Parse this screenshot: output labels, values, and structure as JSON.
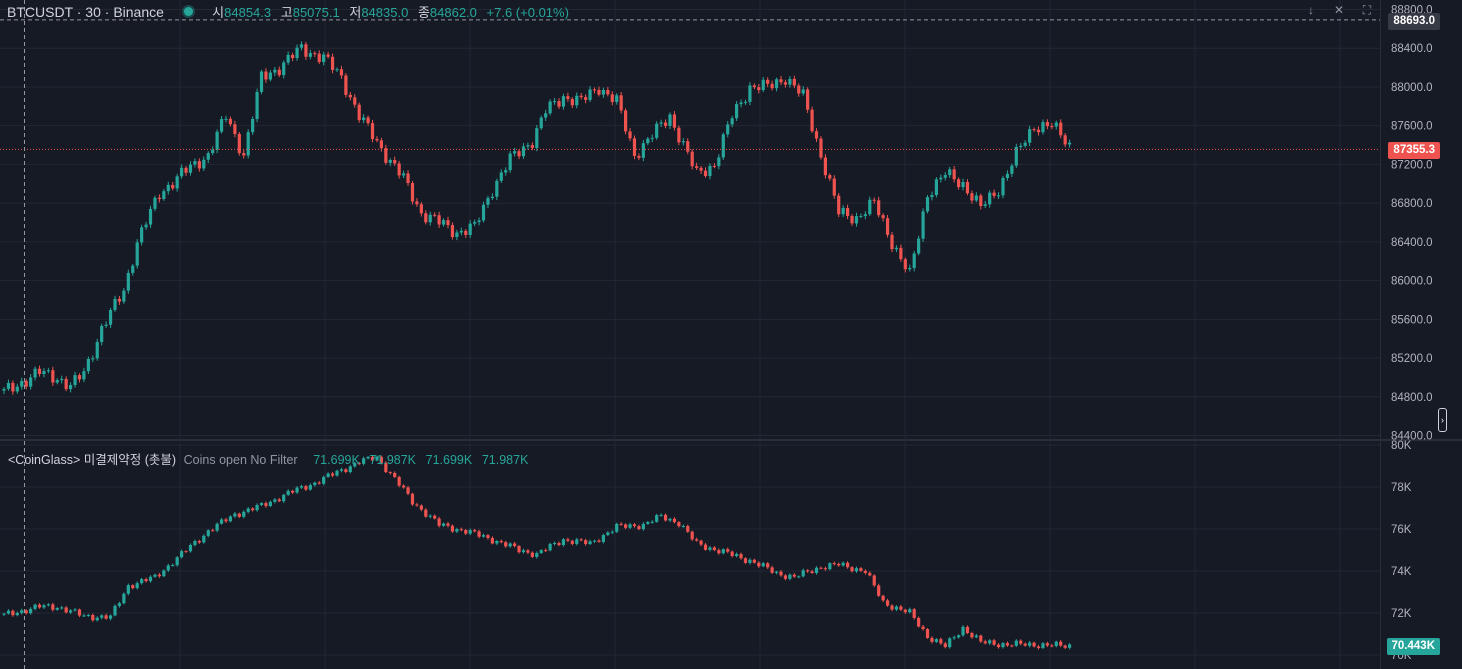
{
  "symbol": {
    "title": "BTCUSDT · 30 · Binance"
  },
  "ohlc": {
    "open_label": "시",
    "open": "84854.3",
    "high_label": "고",
    "high": "85075.1",
    "low_label": "저",
    "low": "84835.0",
    "close_label": "종",
    "close": "84862.0",
    "change": "+7.6 (+0.01%)"
  },
  "price_axis": {
    "labels": [
      "88800.0",
      "88400.0",
      "88000.0",
      "87600.0",
      "87200.0",
      "86800.0",
      "86400.0",
      "86000.0",
      "85600.0",
      "85200.0",
      "84800.0",
      "84400.0"
    ],
    "crosshair_label": "88693.0",
    "last_price_label": "87355.3"
  },
  "indicator": {
    "title": "<CoinGlass> 미결제약정 (촛불)",
    "settings": "Coins open No Filter",
    "values": [
      "71.699K",
      "71.987K",
      "71.699K",
      "71.987K"
    ],
    "axis_labels": [
      "80K",
      "78K",
      "76K",
      "74K",
      "72K",
      "70K"
    ],
    "last_value_label": "70.443K"
  },
  "colors": {
    "up": "#26a69a",
    "down": "#ef5350",
    "background": "#161a25",
    "grid": "#232733"
  },
  "icons": [
    "down-arrow-icon",
    "close-icon",
    "maximize-icon",
    "scroll-handle-icon"
  ],
  "chart_data": [
    {
      "type": "candlestick",
      "title": "BTCUSDT · 30 · Binance",
      "ylim": [
        84400,
        88800
      ],
      "last_price": 87355.3,
      "crosshair_price": 88693.0,
      "anchors": [
        [
          0,
          84850
        ],
        [
          8,
          85050
        ],
        [
          12,
          85000
        ],
        [
          15,
          84900
        ],
        [
          18,
          85050
        ],
        [
          22,
          85500
        ],
        [
          27,
          85900
        ],
        [
          30,
          86400
        ],
        [
          35,
          86900
        ],
        [
          40,
          87100
        ],
        [
          46,
          87300
        ],
        [
          50,
          87700
        ],
        [
          54,
          87300
        ],
        [
          58,
          88100
        ],
        [
          62,
          88200
        ],
        [
          67,
          88400
        ],
        [
          72,
          88300
        ],
        [
          76,
          88100
        ],
        [
          80,
          87700
        ],
        [
          86,
          87300
        ],
        [
          90,
          87050
        ],
        [
          94,
          86700
        ],
        [
          98,
          86600
        ],
        [
          102,
          86500
        ],
        [
          106,
          86550
        ],
        [
          110,
          86950
        ],
        [
          114,
          87250
        ],
        [
          119,
          87450
        ],
        [
          122,
          87750
        ],
        [
          126,
          87900
        ],
        [
          130,
          87850
        ],
        [
          134,
          88000
        ],
        [
          138,
          87850
        ],
        [
          142,
          87300
        ],
        [
          146,
          87500
        ],
        [
          150,
          87700
        ],
        [
          153,
          87400
        ],
        [
          156,
          87100
        ],
        [
          160,
          87200
        ],
        [
          164,
          87700
        ],
        [
          168,
          88000
        ],
        [
          172,
          88000
        ],
        [
          176,
          88100
        ],
        [
          180,
          87900
        ],
        [
          184,
          87300
        ],
        [
          188,
          86700
        ],
        [
          192,
          86650
        ],
        [
          196,
          86800
        ],
        [
          200,
          86400
        ],
        [
          204,
          86050
        ],
        [
          208,
          86900
        ],
        [
          212,
          87100
        ],
        [
          216,
          87000
        ],
        [
          220,
          86750
        ],
        [
          224,
          86950
        ],
        [
          228,
          87300
        ],
        [
          232,
          87600
        ],
        [
          236,
          87600
        ],
        [
          240,
          87400
        ]
      ],
      "count": 241
    },
    {
      "type": "candlestick",
      "title": "<CoinGlass> 미결제약정 (촛불)",
      "ylim": [
        70000,
        80000
      ],
      "last_value": 70443,
      "anchors": [
        [
          0,
          71900
        ],
        [
          8,
          72300
        ],
        [
          12,
          72300
        ],
        [
          18,
          71850
        ],
        [
          24,
          71800
        ],
        [
          28,
          73300
        ],
        [
          34,
          73700
        ],
        [
          40,
          74800
        ],
        [
          46,
          75900
        ],
        [
          52,
          76700
        ],
        [
          58,
          77100
        ],
        [
          64,
          77700
        ],
        [
          70,
          78200
        ],
        [
          76,
          78800
        ],
        [
          80,
          79200
        ],
        [
          84,
          79400
        ],
        [
          88,
          78400
        ],
        [
          92,
          77300
        ],
        [
          98,
          76200
        ],
        [
          104,
          75900
        ],
        [
          110,
          75500
        ],
        [
          116,
          75000
        ],
        [
          120,
          74800
        ],
        [
          126,
          75500
        ],
        [
          132,
          75300
        ],
        [
          138,
          76100
        ],
        [
          144,
          76200
        ],
        [
          148,
          76600
        ],
        [
          152,
          76300
        ],
        [
          156,
          75300
        ],
        [
          162,
          74900
        ],
        [
          168,
          74500
        ],
        [
          174,
          73900
        ],
        [
          178,
          73700
        ],
        [
          184,
          74200
        ],
        [
          188,
          74300
        ],
        [
          194,
          74000
        ],
        [
          198,
          72500
        ],
        [
          204,
          72000
        ],
        [
          208,
          70900
        ],
        [
          212,
          70400
        ],
        [
          216,
          71300
        ],
        [
          220,
          70600
        ],
        [
          226,
          70500
        ],
        [
          232,
          70500
        ],
        [
          236,
          70450
        ],
        [
          240,
          70443
        ]
      ],
      "count": 241
    }
  ]
}
